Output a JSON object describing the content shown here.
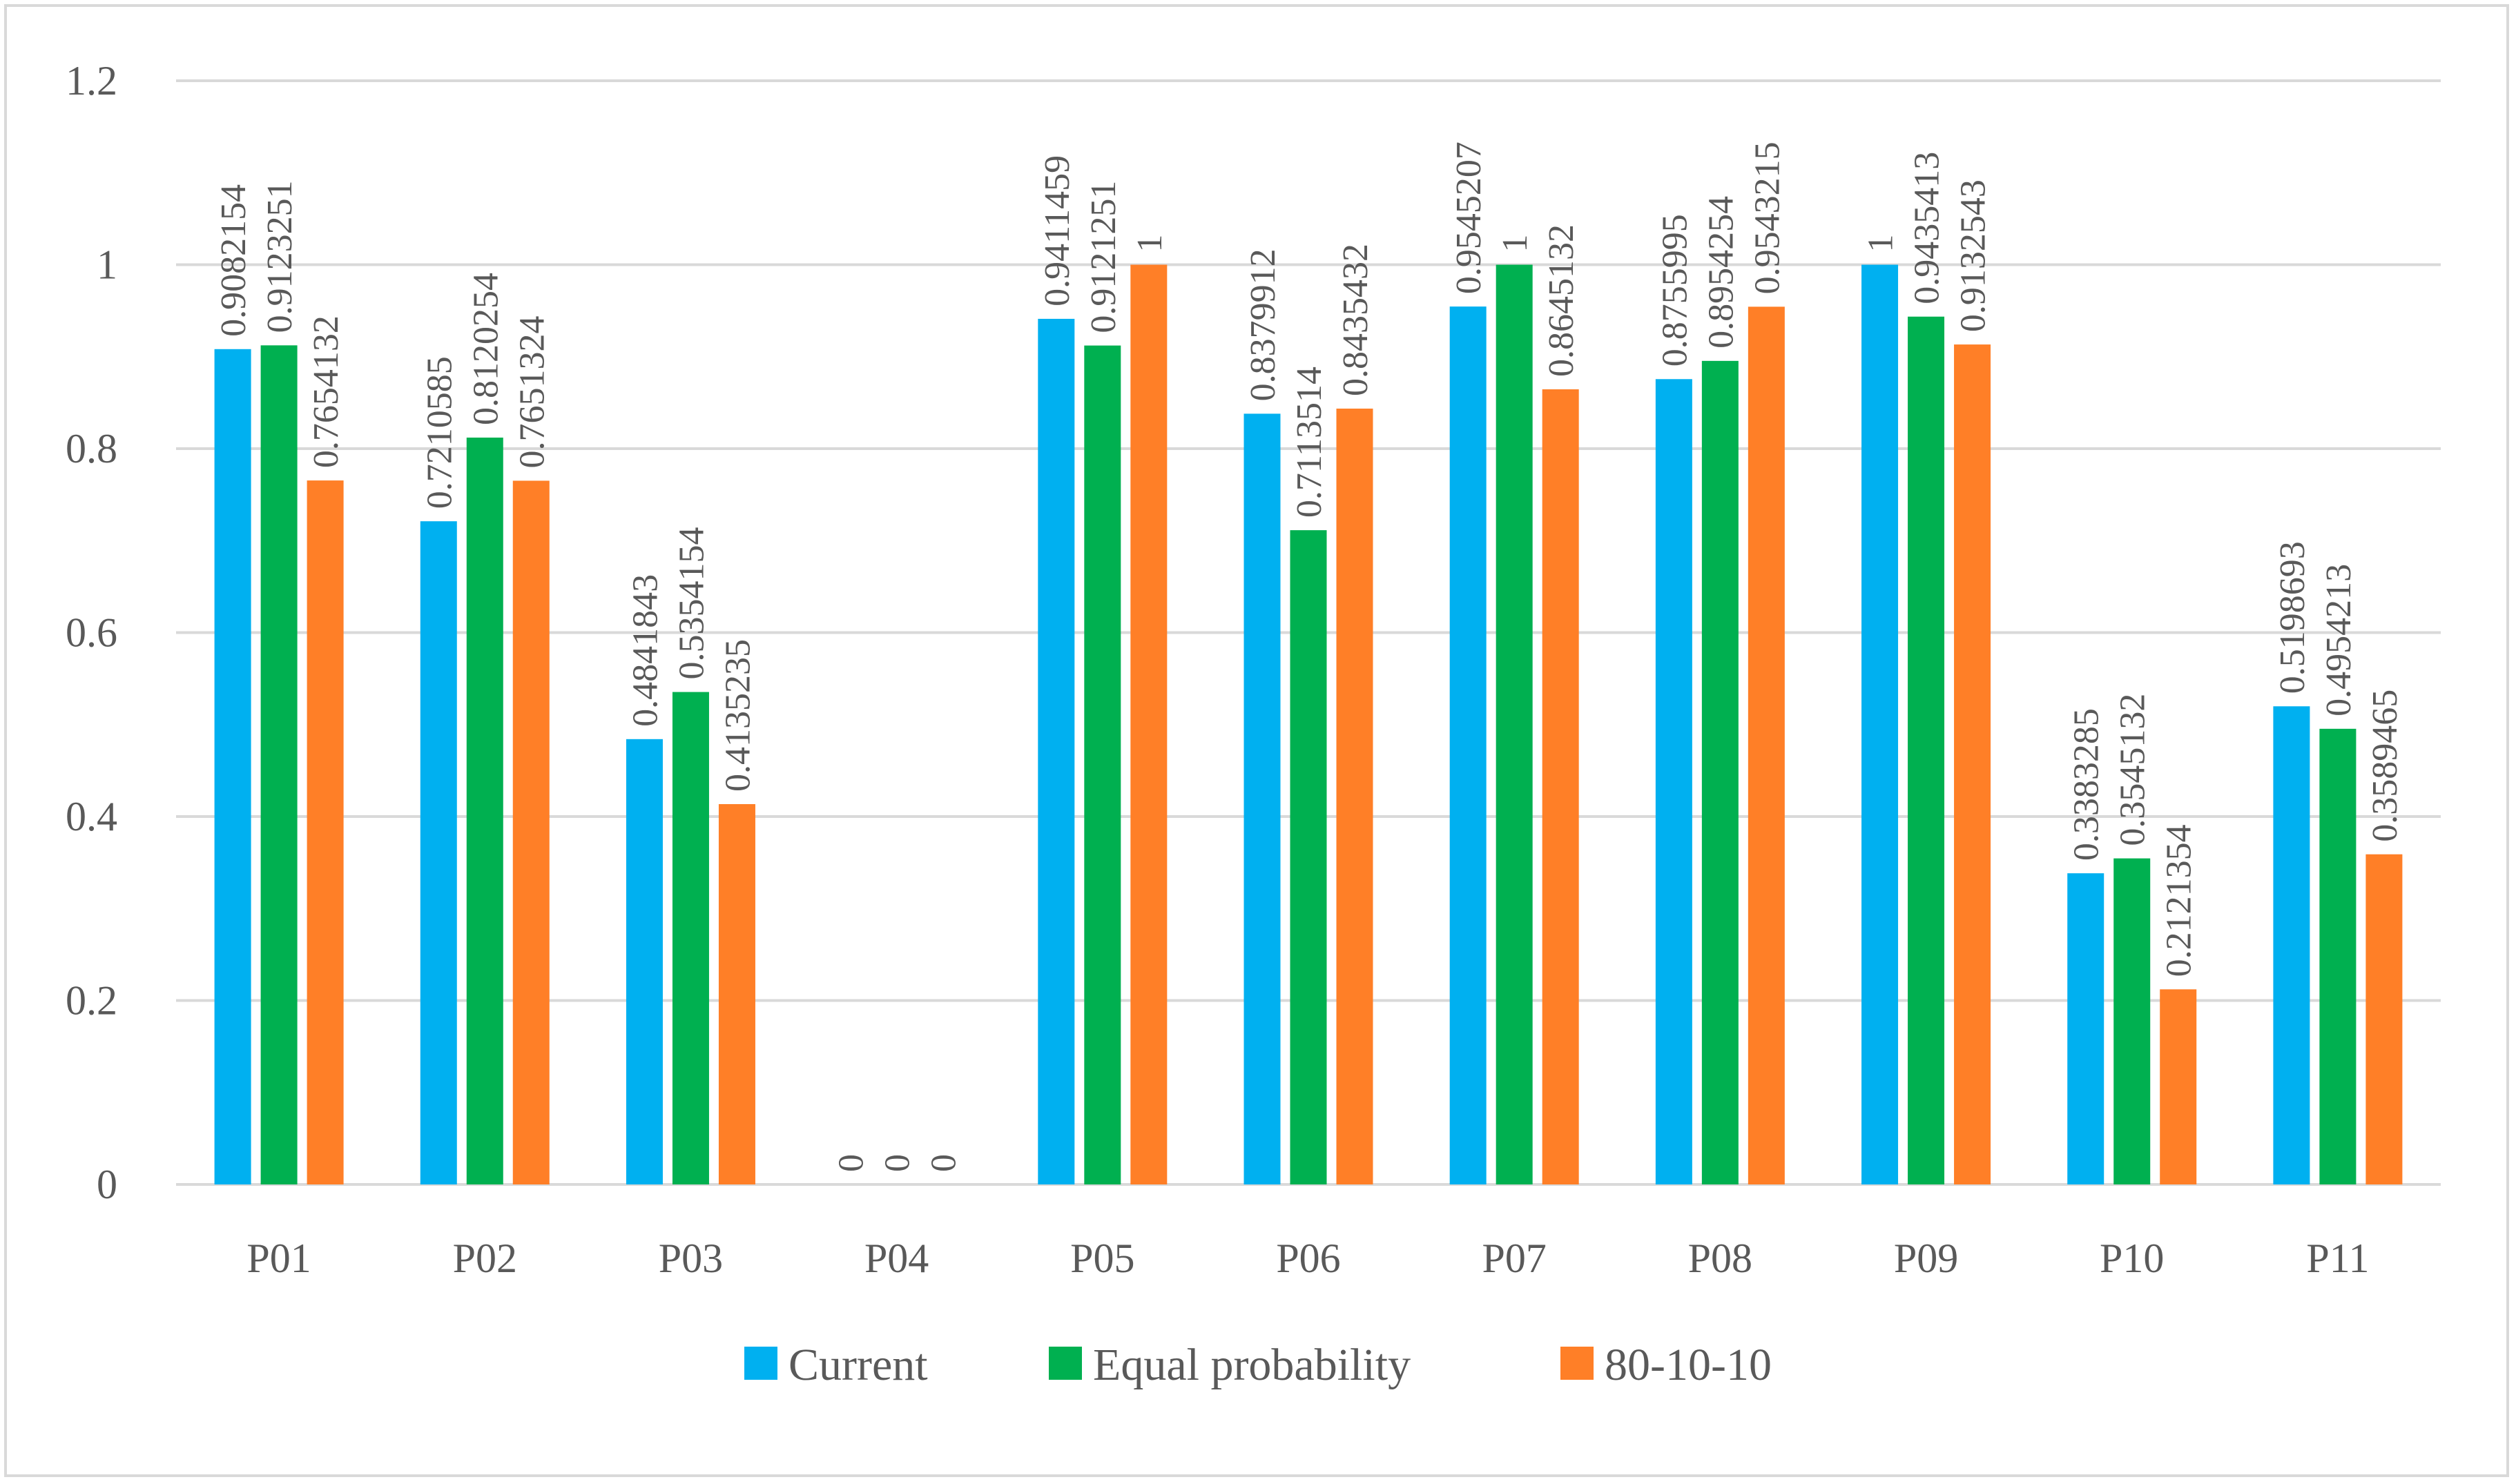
{
  "chart_data": {
    "type": "bar",
    "title": "",
    "xlabel": "",
    "ylabel": "",
    "ylim": [
      0,
      1.2
    ],
    "yticks": [
      "0",
      "0.2",
      "0.4",
      "0.6",
      "0.8",
      "1",
      "1.2"
    ],
    "ytick_values": [
      0,
      0.2,
      0.4,
      0.6,
      0.8,
      1,
      1.2
    ],
    "grid": true,
    "legend_position": "bottom",
    "categories": [
      "P01",
      "P02",
      "P03",
      "P04",
      "P05",
      "P06",
      "P07",
      "P08",
      "P09",
      "P10",
      "P11"
    ],
    "series": [
      {
        "name": "Current",
        "color": "#00b0f0",
        "values": [
          0.9082154,
          0.7210585,
          0.4841843,
          0,
          0.9411459,
          0.8379912,
          0.9545207,
          0.8755995,
          1,
          0.3383285,
          0.5198693
        ],
        "labels": [
          "0.9082154",
          "0.7210585",
          "0.4841843",
          "0",
          "0.9411459",
          "0.8379912",
          "0.9545207",
          "0.8755995",
          "1",
          "0.3383285",
          "0.5198693"
        ]
      },
      {
        "name": "Equal probability",
        "color": "#00b050",
        "values": [
          0.9123251,
          0.8120254,
          0.5354154,
          0,
          0.9121251,
          0.7113514,
          1,
          0.8954254,
          0.9435413,
          0.3545132,
          0.4954213
        ],
        "labels": [
          "0.9123251",
          "0.8120254",
          "0.5354154",
          "0",
          "0.9121251",
          "0.7113514",
          "1",
          "0.8954254",
          "0.9435413",
          "0.3545132",
          "0.4954213"
        ]
      },
      {
        "name": "80-10-10",
        "color": "#ff7f27",
        "values": [
          0.7654132,
          0.7651324,
          0.4135235,
          0,
          1,
          0.8435432,
          0.8645132,
          0.9543215,
          0.9132543,
          0.2121354,
          0.3589465
        ],
        "labels": [
          "0.7654132",
          "0.7651324",
          "0.4135235",
          "0",
          "1",
          "0.8435432",
          "0.8645132",
          "0.9543215",
          "0.9132543",
          "0.2121354",
          "0.3589465"
        ]
      }
    ]
  }
}
